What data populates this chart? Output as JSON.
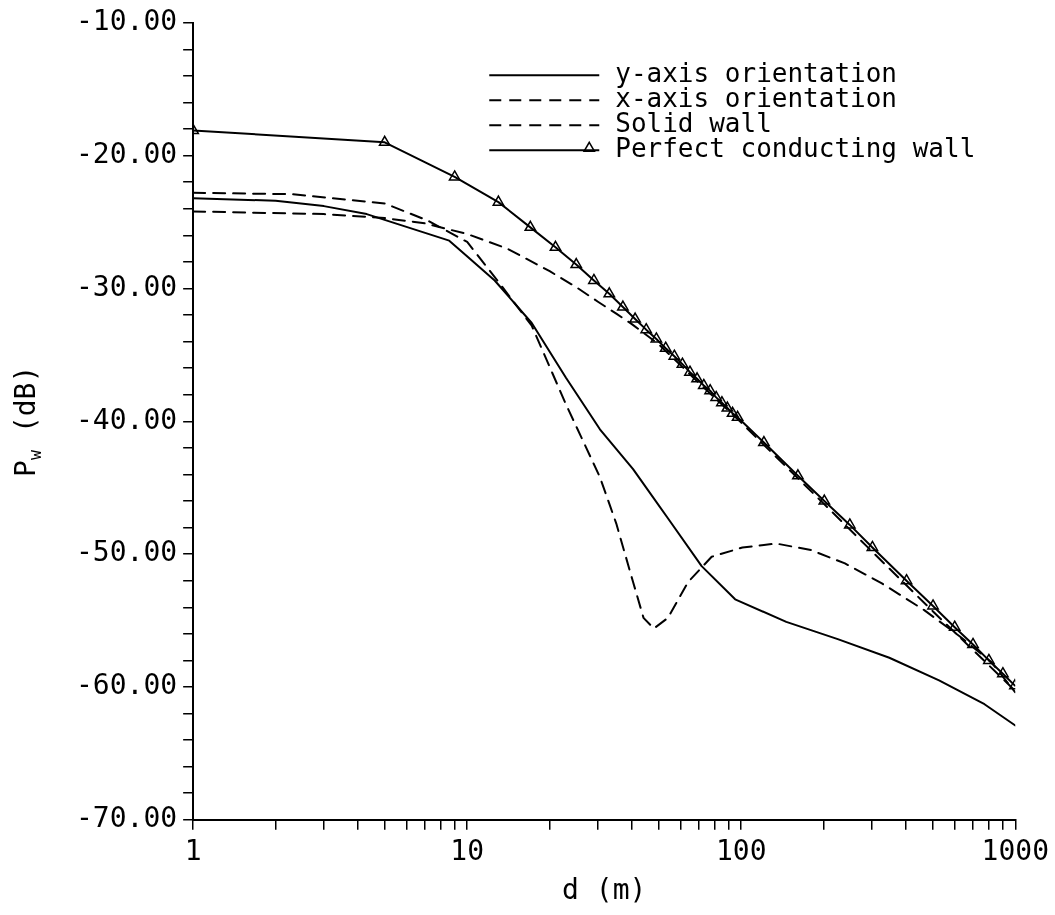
{
  "chart_data": {
    "type": "line",
    "xlabel": "d (m)",
    "ylabel": "P$_{w}$ (dB)",
    "log": "x",
    "legend": "top right",
    "grid": false,
    "xlim": [
      1,
      1000
    ],
    "xticks": [
      1,
      {
        "value": 2,
        "label": null
      },
      {
        "value": 3,
        "label": null
      },
      {
        "value": 4,
        "label": null
      },
      {
        "value": 5,
        "label": null
      },
      {
        "value": 6,
        "label": null
      },
      {
        "value": 7,
        "label": null
      },
      {
        "value": 8,
        "label": null
      },
      {
        "value": 9,
        "label": null
      },
      10,
      {
        "value": 20,
        "label": null
      },
      {
        "value": 30,
        "label": null
      },
      {
        "value": 40,
        "label": null
      },
      {
        "value": 50,
        "label": null
      },
      {
        "value": 60,
        "label": null
      },
      {
        "value": 70,
        "label": null
      },
      {
        "value": 80,
        "label": null
      },
      {
        "value": 90,
        "label": null
      },
      100,
      {
        "value": 200,
        "label": null
      },
      {
        "value": 300,
        "label": null
      },
      {
        "value": 400,
        "label": null
      },
      {
        "value": 500,
        "label": null
      },
      {
        "value": 600,
        "label": null
      },
      {
        "value": 700,
        "label": null
      },
      {
        "value": 800,
        "label": null
      },
      {
        "value": 900,
        "label": null
      },
      1000
    ],
    "ylim": [
      -70,
      -10
    ],
    "yticks": [
      {
        "value": -70,
        "label": "-70.00"
      },
      {
        "value": -68,
        "label": null
      },
      {
        "value": -66,
        "label": null
      },
      {
        "value": -64,
        "label": null
      },
      {
        "value": -62,
        "label": null
      },
      {
        "value": -60,
        "label": "-60.00"
      },
      {
        "value": -58,
        "label": null
      },
      {
        "value": -56,
        "label": null
      },
      {
        "value": -54,
        "label": null
      },
      {
        "value": -52,
        "label": null
      },
      {
        "value": -50,
        "label": "-50.00"
      },
      {
        "value": -48,
        "label": null
      },
      {
        "value": -46,
        "label": null
      },
      {
        "value": -44,
        "label": null
      },
      {
        "value": -42,
        "label": null
      },
      {
        "value": -40,
        "label": "-40.00"
      },
      {
        "value": -38,
        "label": null
      },
      {
        "value": -36,
        "label": null
      },
      {
        "value": -34,
        "label": null
      },
      {
        "value": -32,
        "label": null
      },
      {
        "value": -30,
        "label": "-30.00"
      },
      {
        "value": -28,
        "label": null
      },
      {
        "value": -26,
        "label": null
      },
      {
        "value": -24,
        "label": null
      },
      {
        "value": -22,
        "label": null
      },
      {
        "value": -20,
        "label": "-20.00"
      },
      {
        "value": -18,
        "label": null
      },
      {
        "value": -16,
        "label": null
      },
      {
        "value": -14,
        "label": null
      },
      {
        "value": -12,
        "label": null
      },
      {
        "value": -10,
        "label": "-10.00"
      }
    ],
    "series": [
      {
        "name": "y-axis orientation",
        "color": "#000000",
        "line_style": "solid",
        "marker": "none",
        "x": [
          1,
          2,
          3,
          4.3,
          8.6,
          12.6,
          17.2,
          22.9,
          30.5,
          40.3,
          54,
          71.7,
          95,
          146,
          225,
          347,
          527,
          772,
          1000
        ],
        "values": [
          -23.2,
          -23.4,
          -23.8,
          -24.4,
          -26.4,
          -29.4,
          -32.6,
          -36.7,
          -40.6,
          -43.6,
          -47.3,
          -50.9,
          -53.4,
          -55.1,
          -56.4,
          -57.8,
          -59.5,
          -61.3,
          -62.9
        ]
      },
      {
        "name": "x-axis orientation",
        "color": "#000000",
        "line_style": "dashed",
        "marker": "none",
        "x": [
          1,
          2.3,
          5,
          7.2,
          10,
          13,
          17.2,
          22.9,
          30.5,
          35,
          40.3,
          44,
          48,
          54,
          64,
          78,
          101,
          134,
          180,
          239,
          326,
          464,
          628,
          815,
          1000
        ],
        "values": [
          -22.8,
          -22.9,
          -23.6,
          -24.9,
          -26.5,
          -29.5,
          -32.8,
          -38.7,
          -44.2,
          -47.7,
          -52.1,
          -54.8,
          -55.6,
          -54.8,
          -52.1,
          -50.2,
          -49.5,
          -49.2,
          -49.7,
          -50.7,
          -52.2,
          -54.2,
          -56.2,
          -58.1,
          -60.4
        ]
      },
      {
        "name": "Solid wall",
        "color": "#000000",
        "line_style": "dashed",
        "marker": "none",
        "x": [
          1,
          3,
          5,
          7,
          10,
          14,
          20,
          25,
          30,
          35,
          40,
          50,
          70,
          100,
          200,
          300,
          500,
          700,
          1000
        ],
        "values": [
          -24.2,
          -24.4,
          -24.7,
          -25.1,
          -25.9,
          -27.0,
          -28.7,
          -29.9,
          -31.0,
          -31.9,
          -32.7,
          -34.2,
          -37.1,
          -40.1,
          -46.2,
          -49.8,
          -54.3,
          -57.2,
          -60.3
        ]
      },
      {
        "name": "Perfect conducting wall",
        "color": "#000000",
        "line_style": "solid",
        "marker": "triangle",
        "x": [
          1,
          5,
          9,
          13,
          17,
          21,
          25,
          29,
          33,
          37,
          41,
          45,
          49,
          53,
          57,
          61,
          65,
          69,
          73,
          77,
          81,
          85,
          89,
          93,
          97,
          121,
          161,
          201,
          249,
          301,
          401,
          501,
          601,
          701,
          801,
          901,
          997
        ],
        "values": [
          -18.1,
          -19.0,
          -21.6,
          -23.5,
          -25.4,
          -26.9,
          -28.2,
          -29.4,
          -30.4,
          -31.4,
          -32.3,
          -33.1,
          -33.8,
          -34.5,
          -35.1,
          -35.7,
          -36.3,
          -36.8,
          -37.3,
          -37.7,
          -38.2,
          -38.6,
          -39.0,
          -39.4,
          -39.7,
          -41.6,
          -44.1,
          -46.0,
          -47.8,
          -49.5,
          -52.0,
          -53.9,
          -55.5,
          -56.8,
          -58.0,
          -59.0,
          -59.9
        ]
      }
    ]
  }
}
